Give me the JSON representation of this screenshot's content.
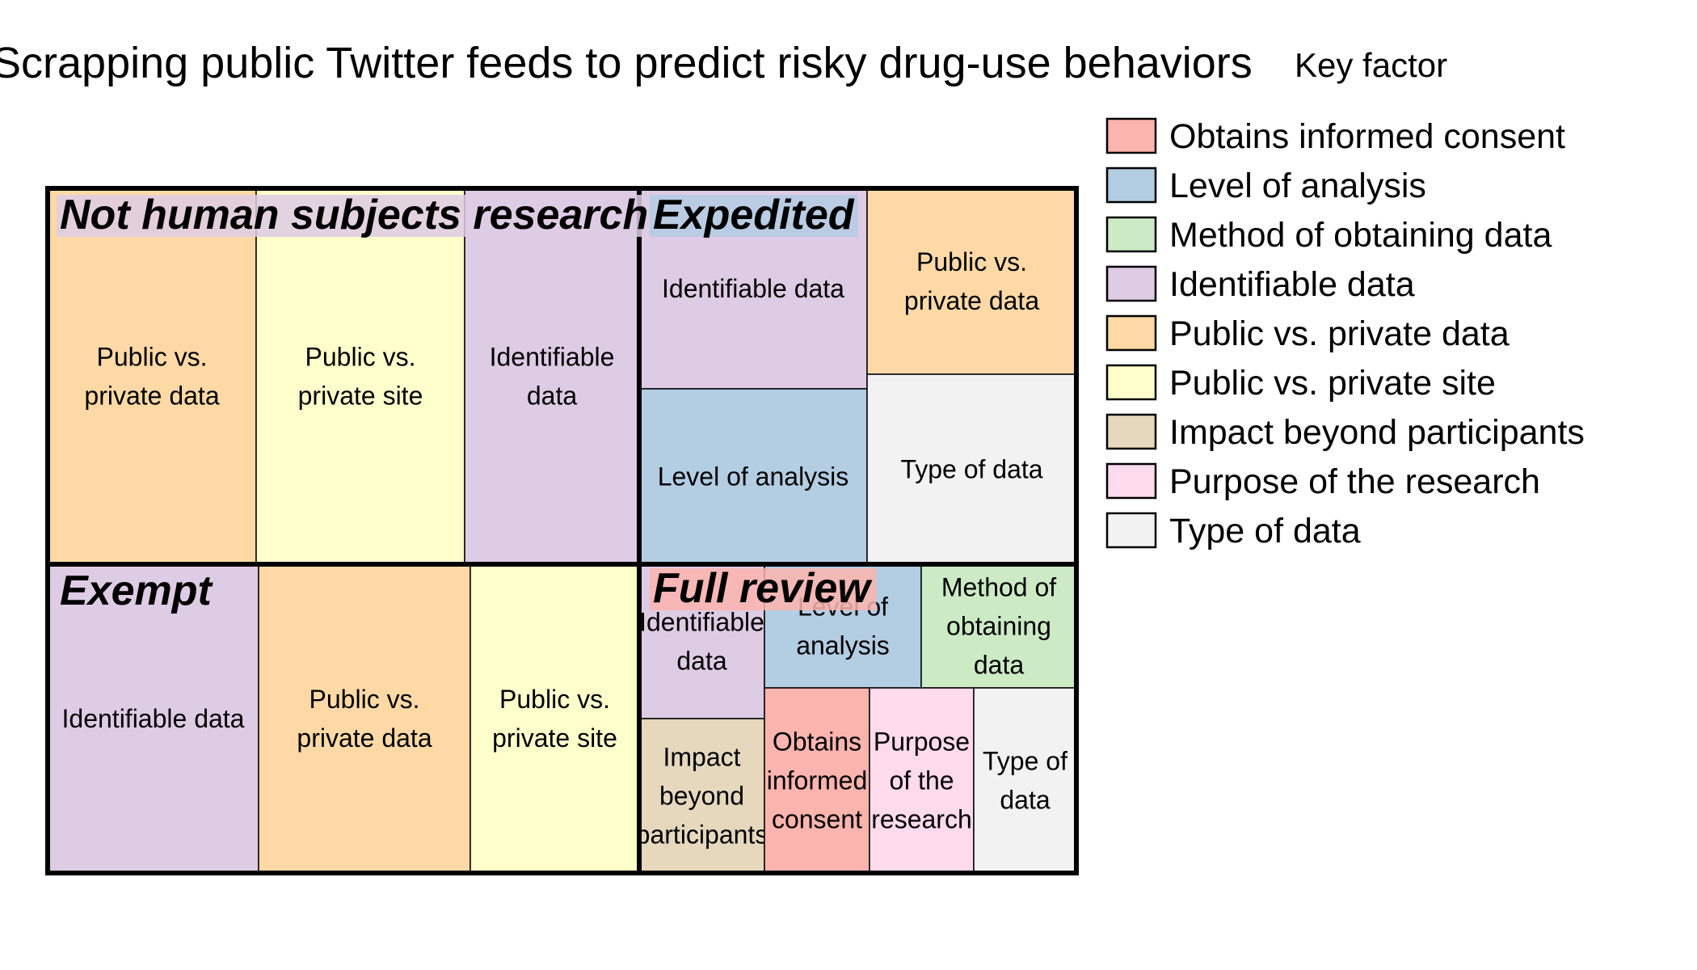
{
  "chart_data": {
    "type": "treemap",
    "title": "Scrapping public Twitter feeds to predict risky drug-use behaviors",
    "legend": {
      "title": "Key factor",
      "position": "right",
      "items": [
        {
          "label": "Obtains informed consent",
          "color": "#FBB4AE"
        },
        {
          "label": "Level of analysis",
          "color": "#B3CDE3"
        },
        {
          "label": "Method of obtaining data",
          "color": "#CCEBC5"
        },
        {
          "label": "Identifiable data",
          "color": "#DECBE4"
        },
        {
          "label": "Public vs. private data",
          "color": "#FED9A6"
        },
        {
          "label": "Public vs. private site",
          "color": "#FFFFCC"
        },
        {
          "label": "Impact beyond participants",
          "color": "#E5D8BD"
        },
        {
          "label": "Purpose of the research",
          "color": "#FDDAEC"
        },
        {
          "label": "Type of data",
          "color": "#F2F2F2"
        }
      ]
    },
    "groups": [
      {
        "name": "Not human subjects research",
        "label_color": "#DECBE4",
        "cells": [
          {
            "label": "Public vs.\nprivate data",
            "factor": "Public vs. private data"
          },
          {
            "label": "Public vs.\nprivate site",
            "factor": "Public vs. private site"
          },
          {
            "label": "Identifiable\ndata",
            "factor": "Identifiable data"
          }
        ]
      },
      {
        "name": "Expedited",
        "label_color": "#B3CDE3",
        "cells": [
          {
            "label": "Identifiable data",
            "factor": "Identifiable data"
          },
          {
            "label": "Public vs.\nprivate data",
            "factor": "Public vs. private data"
          },
          {
            "label": "Level of analysis",
            "factor": "Level of analysis"
          },
          {
            "label": "Type of data",
            "factor": "Type of data"
          }
        ]
      },
      {
        "name": "Exempt",
        "label_color": "#DECBE4",
        "cells": [
          {
            "label": "Identifiable data",
            "factor": "Identifiable data"
          },
          {
            "label": "Public vs.\nprivate data",
            "factor": "Public vs. private data"
          },
          {
            "label": "Public vs.\nprivate site",
            "factor": "Public vs. private site"
          }
        ]
      },
      {
        "name": "Full review",
        "label_color": "#FBB4AE",
        "cells": [
          {
            "label": "Identifiable\ndata",
            "factor": "Identifiable data"
          },
          {
            "label": "Level of\nanalysis",
            "factor": "Level of analysis"
          },
          {
            "label": "Method of\nobtaining\ndata",
            "factor": "Method of obtaining data"
          },
          {
            "label": "Impact\nbeyond\nparticipants",
            "factor": "Impact beyond participants"
          },
          {
            "label": "Obtains\ninformed\nconsent",
            "factor": "Obtains informed consent"
          },
          {
            "label": "Purpose\nof the\nresearch",
            "factor": "Purpose of the research"
          },
          {
            "label": "Type of\ndata",
            "factor": "Type of data"
          }
        ]
      }
    ]
  }
}
